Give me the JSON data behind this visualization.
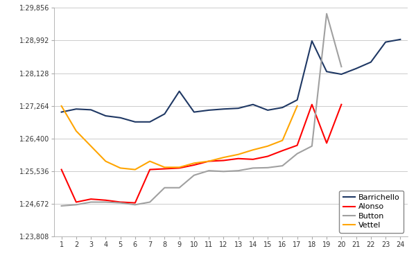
{
  "x": [
    1,
    2,
    3,
    4,
    5,
    6,
    7,
    8,
    9,
    10,
    11,
    12,
    13,
    14,
    15,
    16,
    17,
    18,
    19,
    20,
    21,
    22,
    23,
    24
  ],
  "barrichello": [
    87.1,
    87.18,
    87.16,
    87.0,
    86.95,
    86.84,
    86.84,
    87.05,
    87.65,
    87.1,
    87.15,
    87.18,
    87.2,
    87.3,
    87.15,
    87.22,
    87.42,
    88.98,
    88.17,
    88.1,
    88.25,
    88.42,
    88.95,
    89.02
  ],
  "alonso": [
    85.58,
    84.72,
    84.8,
    84.77,
    84.72,
    84.7,
    85.58,
    85.6,
    85.62,
    85.7,
    85.8,
    85.82,
    85.87,
    85.85,
    85.93,
    86.08,
    86.22,
    87.3,
    86.28,
    87.3,
    null,
    null,
    null,
    null
  ],
  "button": [
    84.62,
    84.65,
    84.72,
    84.72,
    84.7,
    84.65,
    84.72,
    85.1,
    85.1,
    85.43,
    85.55,
    85.53,
    85.55,
    85.62,
    85.63,
    85.68,
    86.0,
    86.2,
    89.7,
    88.3,
    null,
    null,
    null,
    null
  ],
  "vettel": [
    87.26,
    86.6,
    86.2,
    85.8,
    85.62,
    85.58,
    85.8,
    85.64,
    85.64,
    85.75,
    85.8,
    85.9,
    85.98,
    86.1,
    86.2,
    86.35,
    87.26,
    null,
    null,
    null,
    null,
    null,
    null,
    null
  ],
  "yticks_labels": [
    "1:23,808",
    "1:24,672",
    "1:25,536",
    "1:26,400",
    "1:27,264",
    "1:28,128",
    "1:28,992",
    "1:29,856"
  ],
  "yticks_values": [
    83.808,
    84.672,
    85.536,
    86.4,
    87.264,
    88.128,
    88.992,
    89.856
  ],
  "colors": {
    "barrichello": "#1f3864",
    "alonso": "#ff0000",
    "button": "#a0a0a0",
    "vettel": "#ffa500"
  }
}
